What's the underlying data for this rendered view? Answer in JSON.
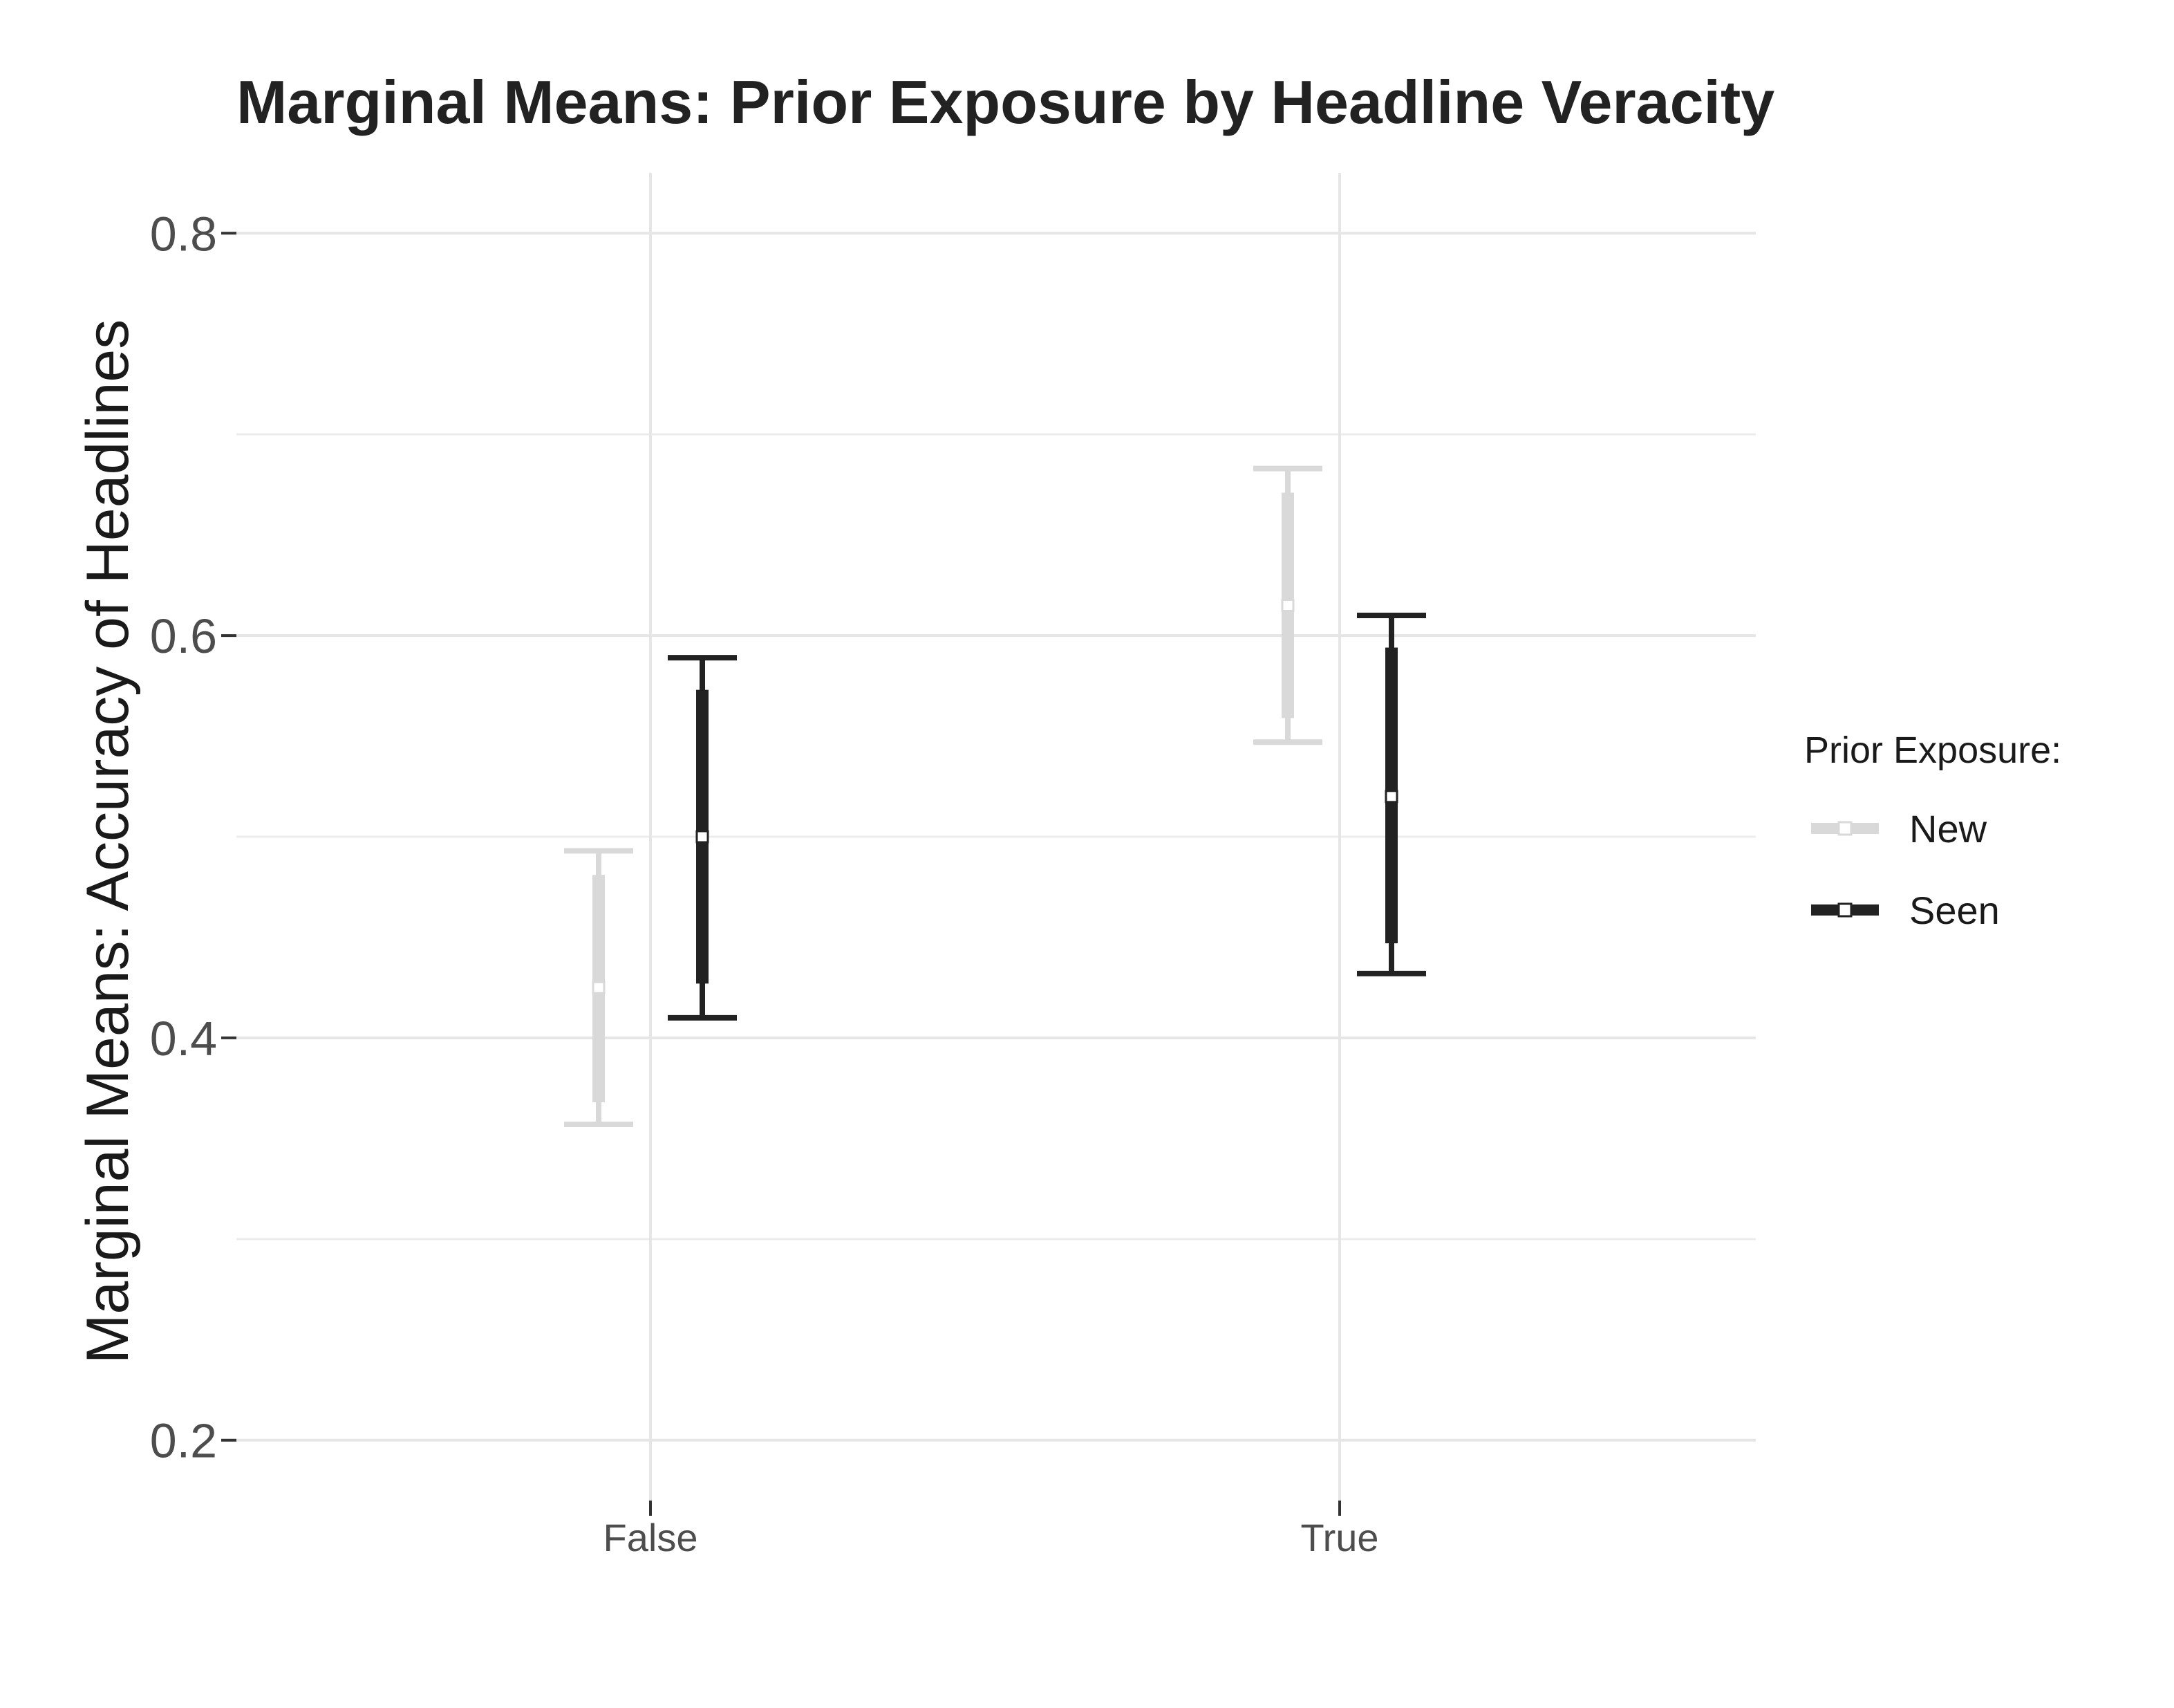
{
  "chart_data": {
    "type": "errorbar",
    "title": "Marginal Means: Prior Exposure by Headline Veracity",
    "xlabel": "",
    "ylabel": "Marginal Means: Accuracy of Headlines",
    "categories": [
      "False",
      "True"
    ],
    "ylim": [
      0.17,
      0.83
    ],
    "yticks": [
      0.2,
      0.4,
      0.6,
      0.8
    ],
    "ytick_labels": [
      "0.2",
      "0.4",
      "0.6",
      "0.8"
    ],
    "minor_yticks": [
      0.3,
      0.5,
      0.7
    ],
    "grid": true,
    "legend": {
      "title": "Prior Exposure:",
      "position": "right"
    },
    "series": [
      {
        "name": "New",
        "color": "#d9d9d9",
        "mean": [
          0.425,
          0.615
        ],
        "ci_inner_low": [
          0.368,
          0.559
        ],
        "ci_inner_high": [
          0.481,
          0.671
        ],
        "ci_outer_low": [
          0.357,
          0.547
        ],
        "ci_outer_high": [
          0.493,
          0.683
        ]
      },
      {
        "name": "Seen",
        "color": "#222222",
        "mean": [
          0.5,
          0.52
        ],
        "ci_inner_low": [
          0.427,
          0.447
        ],
        "ci_inner_high": [
          0.573,
          0.594
        ],
        "ci_outer_low": [
          0.41,
          0.432
        ],
        "ci_outer_high": [
          0.589,
          0.61
        ]
      }
    ]
  }
}
